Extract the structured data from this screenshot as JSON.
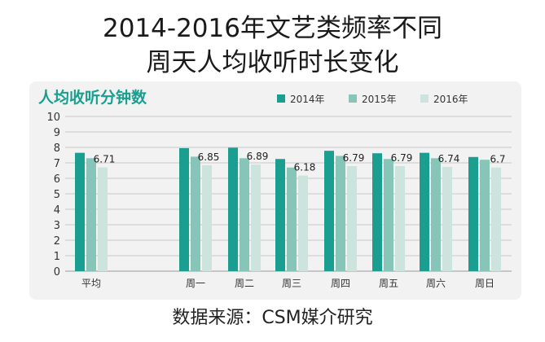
{
  "header": {
    "title_line1": "2014-2016年文艺类频率不同",
    "title_line2": "周天人均收听时长变化"
  },
  "footer": {
    "source": "数据来源：CSM媒介研究"
  },
  "chart_data": {
    "type": "bar",
    "subtitle": "人均收听分钟数",
    "categories": [
      "平均",
      "周一",
      "周二",
      "周三",
      "周四",
      "周五",
      "周六",
      "周日"
    ],
    "series": [
      {
        "name": "2014年",
        "values": [
          7.65,
          7.95,
          7.98,
          7.25,
          7.78,
          7.62,
          7.65,
          7.38
        ]
      },
      {
        "name": "2015年",
        "values": [
          7.3,
          7.4,
          7.3,
          6.7,
          7.45,
          7.25,
          7.3,
          7.2
        ]
      },
      {
        "name": "2016年",
        "values": [
          6.71,
          6.85,
          6.89,
          6.18,
          6.79,
          6.79,
          6.74,
          6.7
        ]
      }
    ],
    "data_labels": [
      "6.71",
      "6.85",
      "6.89",
      "6.18",
      "6.79",
      "6.79",
      "6.74",
      "6.7"
    ],
    "y_ticks": [
      "0",
      "1",
      "2",
      "3",
      "4",
      "5",
      "6",
      "7",
      "8",
      "9",
      "10"
    ],
    "ylim": [
      0,
      10
    ],
    "grid": true,
    "legend_position": "top-right",
    "colors": [
      "#1a9e8f",
      "#86c5b8",
      "#cde3dd"
    ],
    "subtitle_color": "#1a9e8f"
  }
}
